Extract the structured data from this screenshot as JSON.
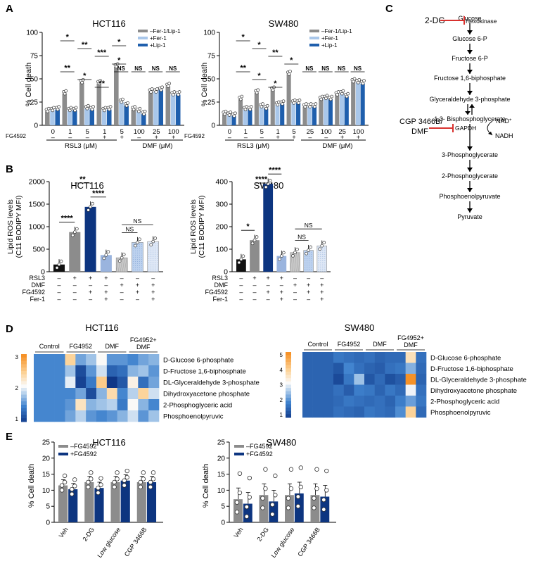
{
  "colors": {
    "grey": "#8c8c8c",
    "light": "#a9c7ea",
    "blue": "#1f5fad",
    "darkblue": "#0d3580",
    "black": "#111111",
    "red": "#d8312e"
  },
  "panel_labels": {
    "A": "A",
    "B": "B",
    "C": "C",
    "D": "D",
    "E": "E"
  },
  "panelA": {
    "charts": [
      {
        "title": "HCT116",
        "ylabel": "% Cell death",
        "ylim": [
          0,
          100
        ],
        "yticks": [
          "0",
          "25",
          "50",
          "75",
          "100"
        ],
        "xcats": [
          "0",
          "1",
          "5",
          "1",
          "5",
          "100",
          "25",
          "100"
        ],
        "fg_row": [
          "–",
          "–",
          "–",
          "+",
          "+",
          "–",
          "+",
          "+"
        ],
        "fg_label": "FG4592",
        "group_labels": [
          "RSL3 (μM)",
          "DMF (μM)"
        ],
        "legend": [
          "–Fer-1/Lip-1",
          "+Fer-1",
          "+Lip-1"
        ],
        "sig": [
          "*",
          "**",
          "***",
          "*",
          "**",
          "*",
          "**",
          "*",
          "NS",
          "NS",
          "NS",
          "NS"
        ]
      },
      {
        "title": "SW480",
        "ylabel": "% Cell death",
        "ylim": [
          0,
          100
        ],
        "yticks": [
          "0",
          "25",
          "50",
          "75",
          "100"
        ],
        "xcats": [
          "0",
          "1",
          "5",
          "1",
          "5",
          "25",
          "100",
          "25",
          "100"
        ],
        "fg_row": [
          "–",
          "–",
          "–",
          "+",
          "+",
          "–",
          "–",
          "+",
          "+"
        ],
        "fg_label": "FG4592",
        "group_labels": [
          "RSL3 (μM)",
          "DMF (μM)"
        ],
        "legend": [
          "–Fer-1/Lip-1",
          "+Fer-1",
          "+Lip-1"
        ],
        "sig": [
          "*",
          "*",
          "**",
          "*",
          "**",
          "*",
          "*",
          "NS",
          "NS",
          "NS",
          "NS"
        ]
      }
    ]
  },
  "panelB": {
    "row_labels": [
      "RSL3",
      "DMF",
      "FG4592",
      "Fer-1"
    ],
    "rows": [
      [
        "–",
        "+",
        "+",
        "+",
        "–",
        "–",
        "–"
      ],
      [
        "–",
        "–",
        "–",
        "–",
        "+",
        "+",
        "+"
      ],
      [
        "–",
        "–",
        "+",
        "+",
        "–",
        "+",
        "+"
      ],
      [
        "–",
        "–",
        "–",
        "+",
        "–",
        "–",
        "+"
      ]
    ],
    "charts": [
      {
        "title": "HCT116",
        "ylabel": "Lipid ROS levels",
        "ylabel2": "(C11 BODIPY MFI)",
        "ylim": [
          0,
          2000
        ],
        "yticks": [
          "0",
          "500",
          "1000",
          "1500",
          "2000"
        ],
        "sig": [
          "****",
          "**",
          "****",
          "NS",
          "NS"
        ]
      },
      {
        "title": "SW480",
        "ylabel": "Lipid ROS levels",
        "ylabel2": "(C11 BODIPY MFI)",
        "ylim": [
          0,
          400
        ],
        "yticks": [
          "0",
          "100",
          "200",
          "300",
          "400"
        ],
        "sig": [
          "*",
          "****",
          "****",
          "NS",
          "NS"
        ]
      }
    ]
  },
  "panelC": {
    "nodes": [
      "Glucose",
      "Glucose 6-P",
      "Fructose 6-P",
      "Fructose 1,6-biphosphate",
      "Glyceraldehyde 3-phosphate",
      "1,3- Bisphosphoglycerate",
      "3-Phosphoglycerate",
      "2-Phosphoglycerate",
      "Phosphoenolpyruvate",
      "Pyruvate"
    ],
    "inhibitor1": "2-DG",
    "enzyme1": "Hexokinase",
    "inhibitor2a": "CGP 3466B/",
    "inhibitor2b": "DMF",
    "enzyme2": "GAPDH",
    "nad": "NAD",
    "nad_sup": "+",
    "nadh": "NADH"
  },
  "panelD": {
    "metabolites": [
      "D-Glucose 6-phosphate",
      "D-Fructose 1,6-biphosphate",
      "DL-Glyceraldehyde 3-phosphate",
      "Dihydroxyacetone phosphate",
      "2-Phosphoglyceric acid",
      "Phosphoenolpyruvic"
    ],
    "heatmaps": [
      {
        "title": "HCT116",
        "groups": [
          "Control",
          "FG4952",
          "DMF",
          "FG4952+",
          "DMF"
        ],
        "scale": [
          "3",
          "2",
          "1"
        ],
        "values": [
          [
            1.0,
            1.0,
            1.0,
            2.3,
            1.2,
            1.4,
            1.8,
            1.1,
            1.1,
            1.0,
            1.2,
            1.3
          ],
          [
            1.0,
            1.0,
            1.0,
            1.4,
            0.5,
            1.1,
            1.6,
            0.7,
            0.8,
            1.3,
            1.4,
            1.1
          ],
          [
            1.0,
            1.0,
            1.0,
            1.7,
            0.4,
            0.9,
            2.4,
            0.3,
            0.6,
            1.9,
            0.8,
            1.2
          ],
          [
            1.0,
            1.0,
            1.0,
            1.0,
            1.2,
            0.5,
            1.3,
            2.2,
            1.0,
            1.5,
            2.3,
            1.6
          ],
          [
            1.0,
            1.0,
            1.0,
            1.1,
            2.1,
            1.3,
            1.4,
            1.5,
            0.9,
            1.8,
            1.3,
            1.0
          ],
          [
            1.0,
            1.0,
            1.0,
            1.2,
            1.5,
            1.1,
            1.0,
            1.1,
            1.3,
            1.6,
            1.1,
            1.4
          ]
        ]
      },
      {
        "title": "SW480",
        "groups": [
          "Control",
          "FG4952",
          "DMF",
          "FG4952+",
          "DMF"
        ],
        "scale": [
          "5",
          "4",
          "3",
          "2",
          "1"
        ],
        "values": [
          [
            1.0,
            1.0,
            1.0,
            1.3,
            1.2,
            1.1,
            1.2,
            1.0,
            1.1,
            1.1,
            3.5,
            1.2
          ],
          [
            1.0,
            1.0,
            1.0,
            0.8,
            1.5,
            1.2,
            1.0,
            0.9,
            1.2,
            1.3,
            2.0,
            1.1
          ],
          [
            1.0,
            1.0,
            1.0,
            0.6,
            1.3,
            2.2,
            0.8,
            1.1,
            0.7,
            0.9,
            5.0,
            1.0
          ],
          [
            1.0,
            1.0,
            1.0,
            1.2,
            0.9,
            1.4,
            1.3,
            1.0,
            1.3,
            1.1,
            2.8,
            1.2
          ],
          [
            1.0,
            1.0,
            1.0,
            1.1,
            1.3,
            1.2,
            1.1,
            1.2,
            1.0,
            1.4,
            1.8,
            1.3
          ],
          [
            1.0,
            1.0,
            1.0,
            1.2,
            1.1,
            1.0,
            1.3,
            1.2,
            1.1,
            1.6,
            3.8,
            1.1
          ]
        ]
      }
    ]
  },
  "panelE": {
    "legend": [
      "–FG4592",
      "+FG4592"
    ],
    "categories": [
      "Veh",
      "2-DG",
      "Low glucose",
      "CGP 3466B"
    ],
    "charts": [
      {
        "title": "HCT116",
        "ylabel": "% Cell death",
        "ylim": [
          0,
          25
        ],
        "yticks": [
          "0",
          "5",
          "10",
          "15",
          "20",
          "25"
        ]
      },
      {
        "title": "SW480",
        "ylabel": "% Cell death",
        "ylim": [
          0,
          25
        ],
        "yticks": [
          "0",
          "5",
          "10",
          "15",
          "20",
          "25"
        ]
      }
    ]
  },
  "chart_data": [
    {
      "type": "bar",
      "title": "HCT116",
      "ylabel": "% Cell death",
      "ylim": [
        0,
        100
      ],
      "categories": [
        "0",
        "1",
        "5",
        "1 +FG4592",
        "5 +FG4592",
        "DMF 100",
        "DMF 25 +FG4592",
        "DMF 100 +FG4592"
      ],
      "series": [
        {
          "name": "–Fer-1/Lip-1",
          "values": [
            15,
            34,
            46,
            45,
            63,
            17,
            36,
            42
          ]
        },
        {
          "name": "+Fer-1",
          "values": [
            16,
            16,
            18,
            16,
            25,
            15,
            36,
            33
          ]
        },
        {
          "name": "+Lip-1",
          "values": [
            17,
            16,
            17,
            17,
            21,
            12,
            38,
            33
          ]
        }
      ]
    },
    {
      "type": "bar",
      "title": "SW480",
      "ylabel": "% Cell death",
      "ylim": [
        0,
        100
      ],
      "categories": [
        "0",
        "1",
        "5",
        "1 +FG4592",
        "5 +FG4592",
        "DMF 25",
        "DMF 100",
        "DMF 25 +FG4592",
        "DMF 100 +FG4592"
      ],
      "series": [
        {
          "name": "–Fer-1/Lip-1",
          "values": [
            12,
            28,
            35,
            38,
            55,
            20,
            28,
            33,
            47
          ]
        },
        {
          "name": "+Fer-1",
          "values": [
            11,
            17,
            20,
            22,
            24,
            20,
            29,
            34,
            46
          ]
        },
        {
          "name": "+Lip-1",
          "values": [
            10,
            17,
            18,
            23,
            24,
            20,
            28,
            31,
            45
          ]
        }
      ]
    },
    {
      "type": "bar",
      "title": "HCT116",
      "ylabel": "Lipid ROS levels",
      "ylim": [
        0,
        2000
      ],
      "categories": [
        "1",
        "2",
        "3",
        "4",
        "5",
        "6",
        "7"
      ],
      "values": [
        160,
        880,
        1440,
        370,
        310,
        650,
        670
      ]
    },
    {
      "type": "bar",
      "title": "SW480",
      "ylabel": "Lipid ROS levels",
      "ylim": [
        0,
        400
      ],
      "categories": [
        "1",
        "2",
        "3",
        "4",
        "5",
        "6",
        "7"
      ],
      "values": [
        55,
        140,
        390,
        70,
        85,
        95,
        115
      ]
    },
    {
      "type": "heatmap",
      "title": "HCT116"
    },
    {
      "type": "heatmap",
      "title": "SW480"
    },
    {
      "type": "bar",
      "title": "HCT116",
      "ylabel": "% Cell death",
      "ylim": [
        0,
        25
      ],
      "categories": [
        "Veh",
        "2-DG",
        "Low glucose",
        "CGP 3466B"
      ],
      "series": [
        {
          "name": "–FG4592",
          "values": [
            11.5,
            12.5,
            12.5,
            12.5
          ]
        },
        {
          "name": "+FG4592",
          "values": [
            10.3,
            10.7,
            13,
            12.5
          ]
        }
      ]
    },
    {
      "type": "bar",
      "title": "SW480",
      "ylabel": "% Cell death",
      "ylim": [
        0,
        25
      ],
      "categories": [
        "Veh",
        "2-DG",
        "Low glucose",
        "CGP 3466B"
      ],
      "series": [
        {
          "name": "–FG4592",
          "values": [
            7.2,
            8.5,
            8.5,
            8.5
          ]
        },
        {
          "name": "+FG4592",
          "values": [
            5.8,
            6.5,
            9,
            8
          ]
        }
      ]
    }
  ]
}
